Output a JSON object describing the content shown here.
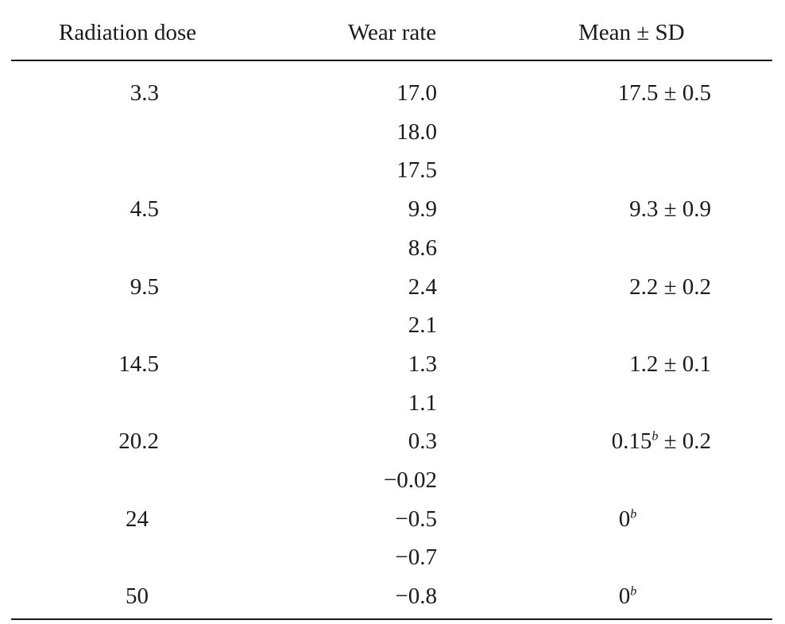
{
  "headers": {
    "dose": "Radiation dose",
    "wear": "Wear rate",
    "mean": "Mean ± SD"
  },
  "rows": [
    {
      "dose": "3.3",
      "wear": "17.0",
      "mean": "17.5 ± 0.5",
      "mean_sup": ""
    },
    {
      "dose": "",
      "wear": "18.0",
      "mean": "",
      "mean_sup": ""
    },
    {
      "dose": "",
      "wear": "17.5",
      "mean": "",
      "mean_sup": ""
    },
    {
      "dose": "4.5",
      "wear": "9.9",
      "mean": "9.3 ± 0.9",
      "mean_sup": ""
    },
    {
      "dose": "",
      "wear": "8.6",
      "mean": "",
      "mean_sup": ""
    },
    {
      "dose": "9.5",
      "wear": "2.4",
      "mean": "2.2 ± 0.2",
      "mean_sup": ""
    },
    {
      "dose": "",
      "wear": "2.1",
      "mean": "",
      "mean_sup": ""
    },
    {
      "dose": "14.5",
      "wear": "1.3",
      "mean": "1.2 ± 0.1",
      "mean_sup": ""
    },
    {
      "dose": "",
      "wear": "1.1",
      "mean": "",
      "mean_sup": ""
    },
    {
      "dose": "20.2",
      "wear": "0.3",
      "mean_pre": "0.15",
      "mean_sup": "b",
      "mean_post": " ± 0.2"
    },
    {
      "dose": "",
      "wear": "−0.02",
      "mean": "",
      "mean_sup": ""
    },
    {
      "dose": "24",
      "wear": "−0.5",
      "mean_pre": "0",
      "mean_sup": "b",
      "mean_post": ""
    },
    {
      "dose": "",
      "wear": "−0.7",
      "mean": "",
      "mean_sup": ""
    },
    {
      "dose": "50",
      "wear": "−0.8",
      "mean_pre": "0",
      "mean_sup": "b",
      "mean_post": ""
    }
  ]
}
